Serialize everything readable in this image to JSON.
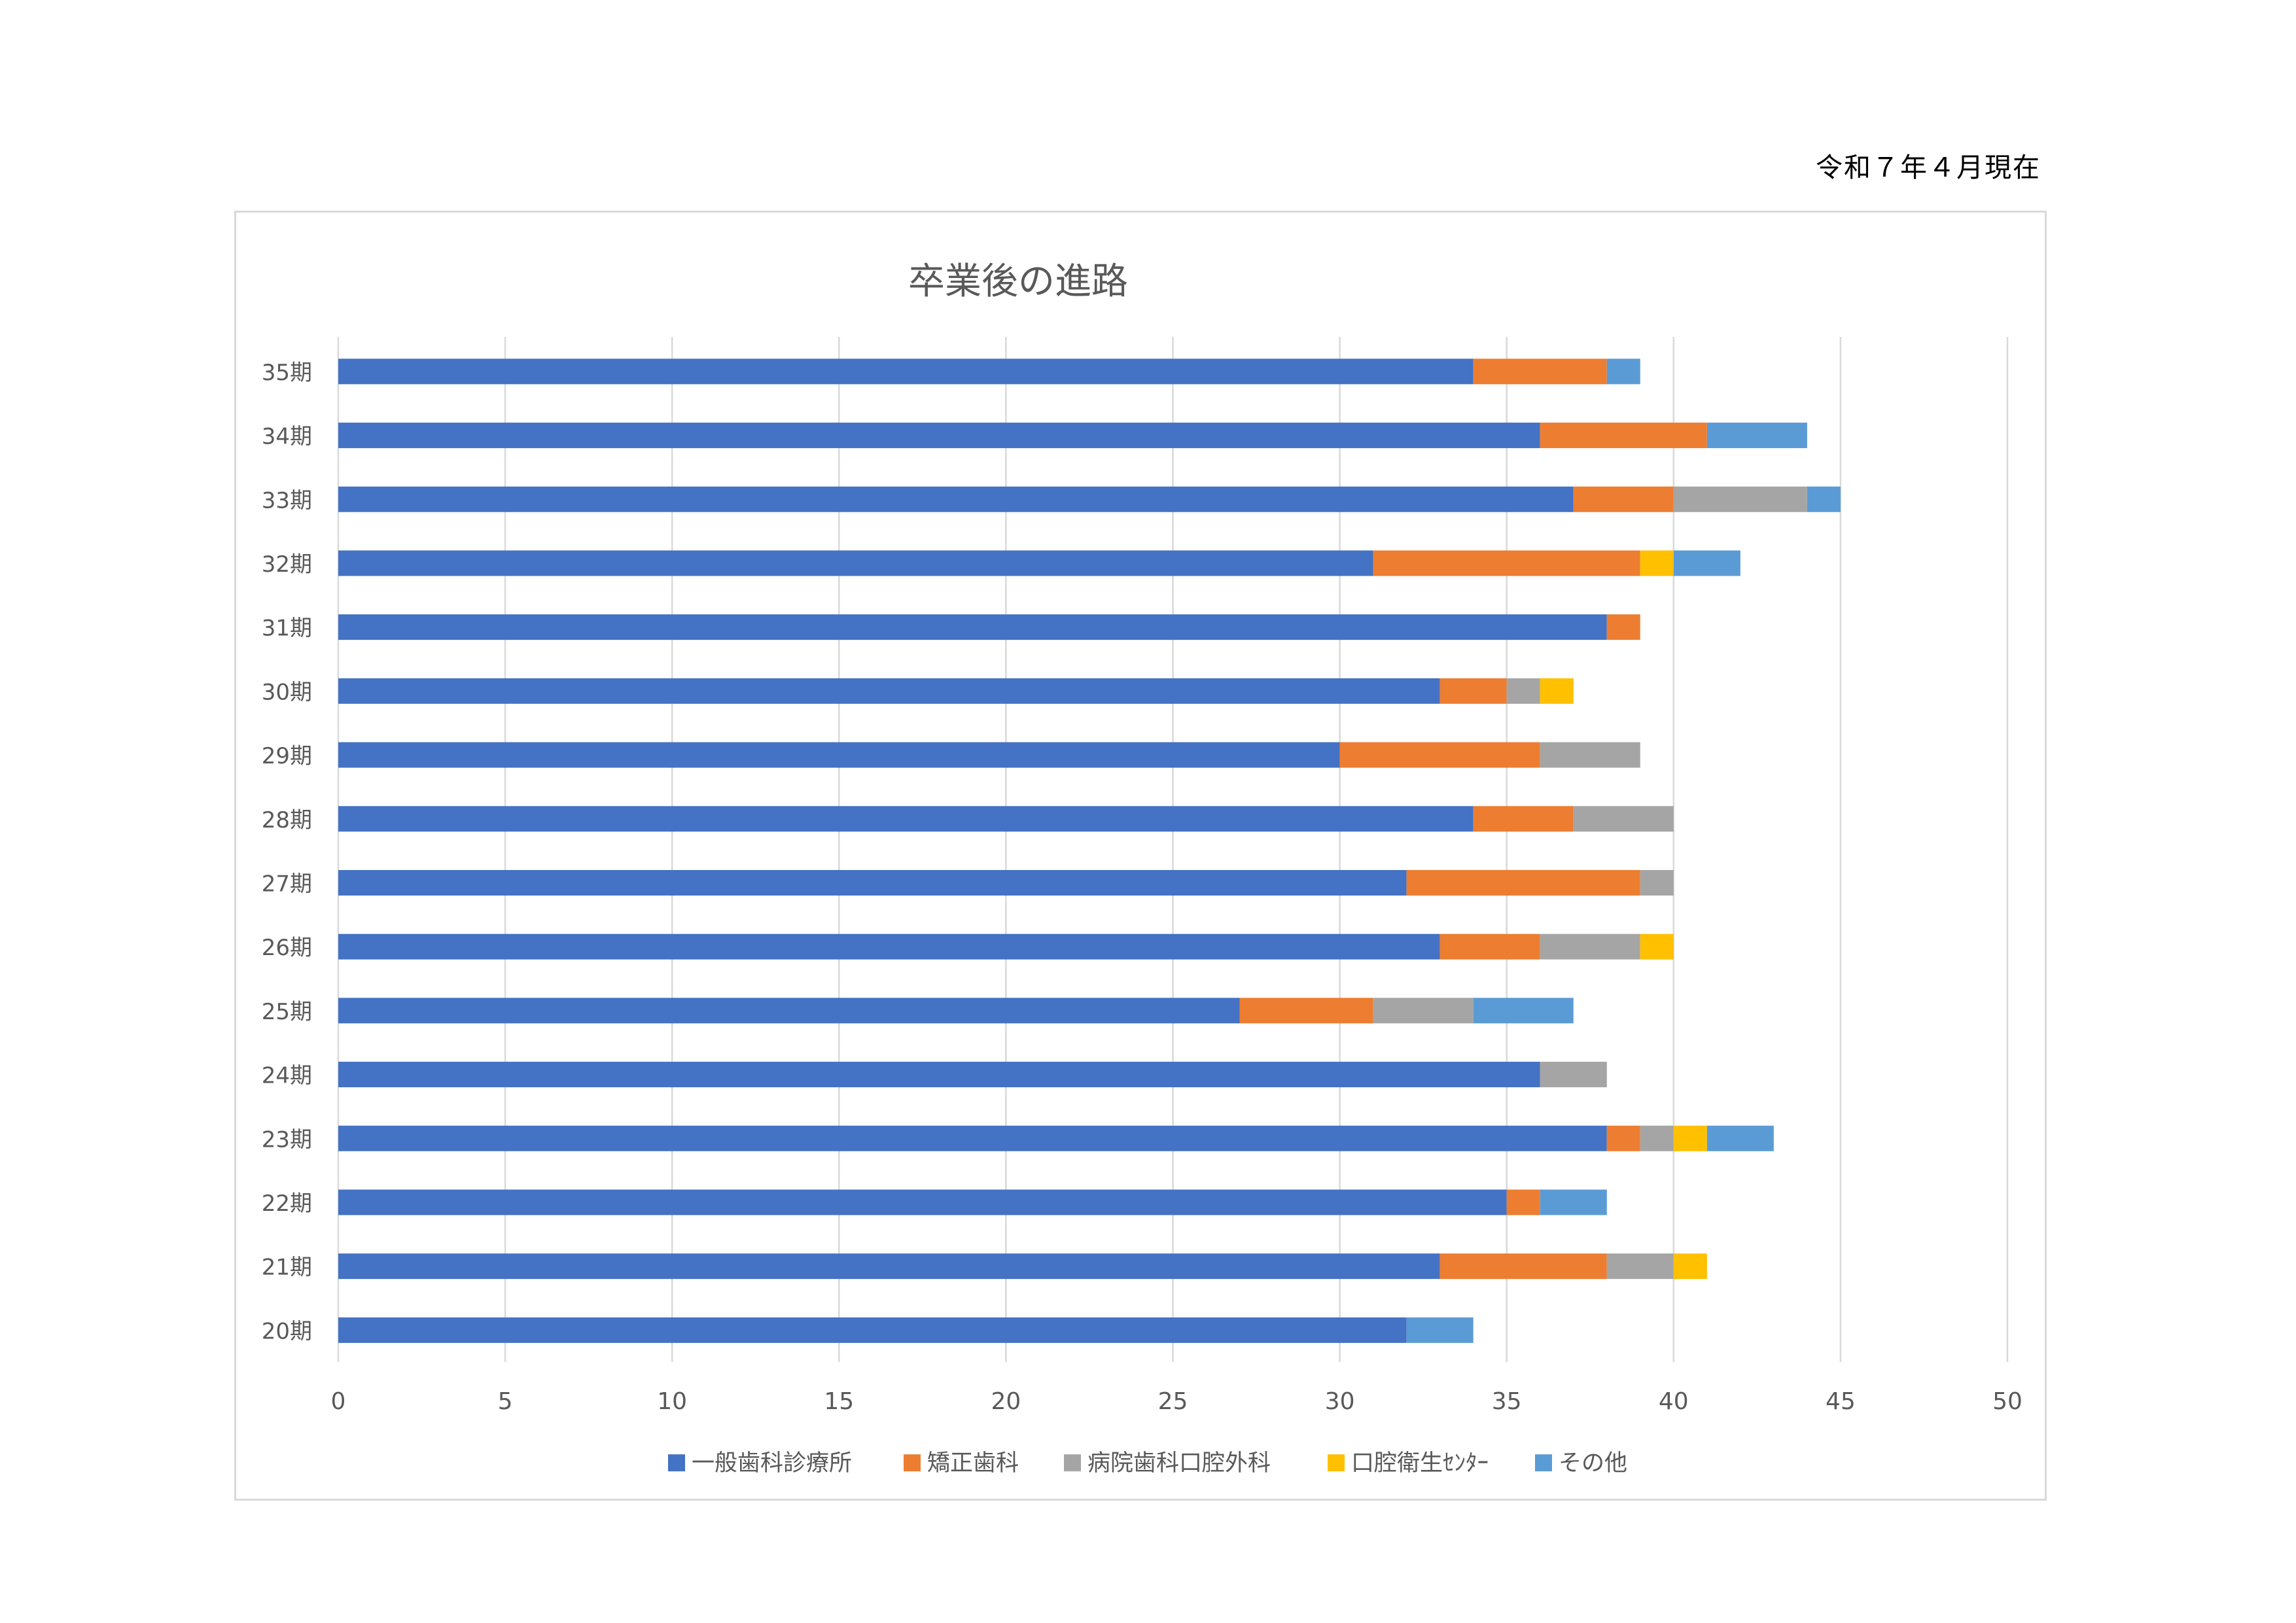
{
  "header": {
    "date": "令和７年４月現在"
  },
  "chart_data": {
    "type": "bar",
    "orientation": "horizontal",
    "stacked": true,
    "title": "卒業後の進路",
    "xlim": [
      0,
      50
    ],
    "xticks": [
      0,
      5,
      10,
      15,
      20,
      25,
      30,
      35,
      40,
      45,
      50
    ],
    "grid": true,
    "legend_position": "bottom",
    "categories": [
      "35期",
      "34期",
      "33期",
      "32期",
      "31期",
      "30期",
      "29期",
      "28期",
      "27期",
      "26期",
      "25期",
      "24期",
      "23期",
      "22期",
      "21期",
      "20期"
    ],
    "series": [
      {
        "name": "一般歯科診療所",
        "color": "#4472C4",
        "values": [
          34,
          36,
          37,
          31,
          38,
          33,
          30,
          34,
          32,
          33,
          27,
          36,
          38,
          35,
          33,
          32
        ]
      },
      {
        "name": "矯正歯科",
        "color": "#ED7D31",
        "values": [
          4,
          5,
          3,
          8,
          1,
          2,
          6,
          3,
          7,
          3,
          4,
          0,
          1,
          1,
          5,
          0
        ]
      },
      {
        "name": "病院歯科口腔外科",
        "color": "#A5A5A5",
        "values": [
          0,
          0,
          4,
          0,
          0,
          1,
          3,
          3,
          1,
          3,
          3,
          2,
          1,
          0,
          2,
          0
        ]
      },
      {
        "name": "口腔衛生ｾﾝﾀｰ",
        "color": "#FFC000",
        "values": [
          0,
          0,
          0,
          1,
          0,
          1,
          0,
          0,
          0,
          1,
          0,
          0,
          1,
          0,
          1,
          0
        ]
      },
      {
        "name": "その他",
        "color": "#5B9BD5",
        "values": [
          1,
          3,
          1,
          2,
          0,
          0,
          0,
          0,
          0,
          0,
          3,
          0,
          2,
          2,
          0,
          2
        ]
      }
    ]
  }
}
